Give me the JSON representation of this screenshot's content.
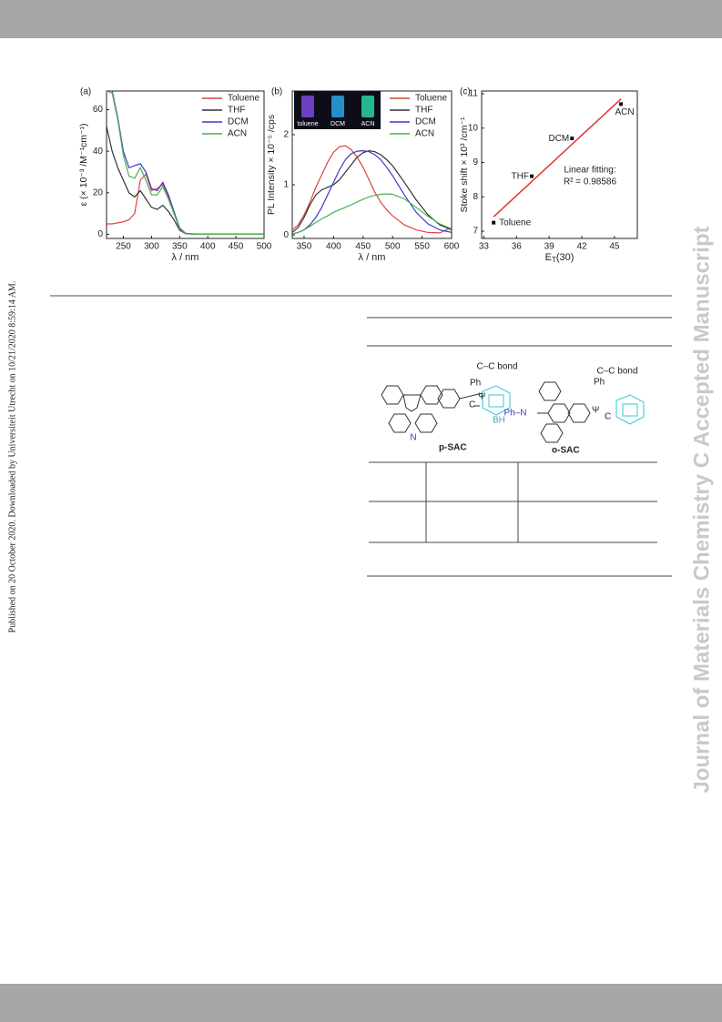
{
  "sidebar": {
    "published": "Published on 20 October 2020. Downloaded by Universiteit Utrecht on 10/21/2020 8:59:14 AM.",
    "watermark": "Journal of Materials Chemistry C Accepted Manuscript"
  },
  "chart_data": [
    {
      "type": "line",
      "panel": "(a)",
      "xlabel": "λ / nm",
      "ylabel": "ε (× 10⁻³ /M⁻¹cm⁻¹)",
      "xlim": [
        220,
        500
      ],
      "ylim": [
        -2,
        69
      ],
      "xticks": [
        250,
        300,
        350,
        400,
        450,
        500
      ],
      "yticks": [
        0,
        20,
        40,
        60
      ],
      "x": [
        220,
        230,
        240,
        250,
        260,
        270,
        280,
        290,
        300,
        310,
        320,
        330,
        340,
        350,
        360,
        380,
        400,
        450,
        500
      ],
      "series": [
        {
          "name": "Toluene",
          "color": "#e0433f",
          "values": [
            5,
            5,
            5.5,
            6,
            7,
            10,
            26,
            29,
            21,
            22,
            24,
            18,
            10,
            3,
            0.5,
            0,
            0,
            0,
            0
          ]
        },
        {
          "name": "THF",
          "color": "#333333",
          "values": [
            52,
            40,
            32,
            26,
            20,
            18,
            21,
            17,
            13,
            12,
            14,
            11,
            7,
            2,
            0.3,
            0,
            0,
            0,
            0
          ]
        },
        {
          "name": "DCM",
          "color": "#3a3ac8",
          "values": [
            69,
            69,
            56,
            40,
            32,
            33,
            34,
            30,
            22,
            21,
            25,
            19,
            11,
            3,
            0.5,
            0,
            0,
            0,
            0
          ]
        },
        {
          "name": "ACN",
          "color": "#4caf50",
          "values": [
            69,
            68,
            55,
            38,
            28,
            27,
            32,
            26,
            19,
            19,
            23,
            17,
            10,
            2.5,
            0.3,
            0,
            0,
            0,
            0
          ]
        }
      ]
    },
    {
      "type": "line",
      "panel": "(b)",
      "xlabel": "λ / nm",
      "ylabel": "PL Intensity × 10⁻⁵ /cps",
      "xlim": [
        330,
        600
      ],
      "ylim": [
        -0.07,
        2.87
      ],
      "xticks": [
        350,
        400,
        450,
        500,
        550,
        600
      ],
      "yticks": [
        0,
        1,
        2
      ],
      "inset_labels": [
        "toluene",
        "DCM",
        "ACN"
      ],
      "x": [
        330,
        340,
        350,
        360,
        370,
        380,
        390,
        400,
        410,
        420,
        430,
        440,
        450,
        460,
        470,
        480,
        490,
        500,
        520,
        540,
        560,
        580,
        600
      ],
      "series": [
        {
          "name": "Toluene",
          "color": "#e0433f",
          "values": [
            0.1,
            0.2,
            0.4,
            0.65,
            0.95,
            1.2,
            1.45,
            1.65,
            1.76,
            1.78,
            1.7,
            1.55,
            1.35,
            1.1,
            0.85,
            0.65,
            0.5,
            0.38,
            0.2,
            0.1,
            0.05,
            0.04,
            0.15
          ]
        },
        {
          "name": "THF",
          "color": "#333333",
          "values": [
            0.05,
            0.15,
            0.35,
            0.6,
            0.8,
            0.9,
            0.95,
            1.0,
            1.1,
            1.25,
            1.4,
            1.55,
            1.64,
            1.68,
            1.66,
            1.6,
            1.5,
            1.38,
            1.05,
            0.7,
            0.4,
            0.2,
            0.1
          ]
        },
        {
          "name": "DCM",
          "color": "#3a3ac8",
          "values": [
            0.02,
            0.05,
            0.1,
            0.2,
            0.35,
            0.55,
            0.8,
            1.05,
            1.3,
            1.5,
            1.62,
            1.67,
            1.68,
            1.66,
            1.6,
            1.5,
            1.35,
            1.18,
            0.8,
            0.45,
            0.22,
            0.1,
            0.05
          ]
        },
        {
          "name": "ACN",
          "color": "#4caf50",
          "values": [
            0.02,
            0.05,
            0.1,
            0.17,
            0.25,
            0.32,
            0.38,
            0.45,
            0.5,
            0.55,
            0.6,
            0.66,
            0.71,
            0.76,
            0.79,
            0.81,
            0.82,
            0.81,
            0.72,
            0.55,
            0.37,
            0.22,
            0.12
          ]
        }
      ]
    },
    {
      "type": "scatter",
      "panel": "(c)",
      "xlabel": {
        "main": "E",
        "sub": "T",
        "rest": "(30)"
      },
      "ylabel": "Stoke shift × 10³ /cm⁻¹",
      "xlim": [
        32.8,
        47.1
      ],
      "ylim": [
        6.79,
        11.08
      ],
      "xticks": [
        33,
        36,
        39,
        42,
        45
      ],
      "yticks": [
        7,
        8,
        9,
        10,
        11
      ],
      "x": [
        33.9,
        37.4,
        41.1,
        45.6
      ],
      "values": [
        7.25,
        8.6,
        9.7,
        10.7
      ],
      "point_labels": [
        "Toluene",
        "THF",
        "DCM",
        "ACN"
      ],
      "color": "#111111",
      "fit_x": [
        33.9,
        45.6
      ],
      "fit_values": [
        7.42,
        10.85
      ],
      "fit_color": "#e0332f",
      "annotations": [
        "Linear fitting:",
        "R² = 0.98586"
      ]
    }
  ],
  "figure": {
    "bond_label": "C–C bond",
    "ph": "Ph",
    "c": "C",
    "psi": "Ψ",
    "bh": "BH",
    "n": "N",
    "phn": "Ph–N",
    "p_sac": "p-SAC",
    "o_sac": "o-SAC"
  }
}
